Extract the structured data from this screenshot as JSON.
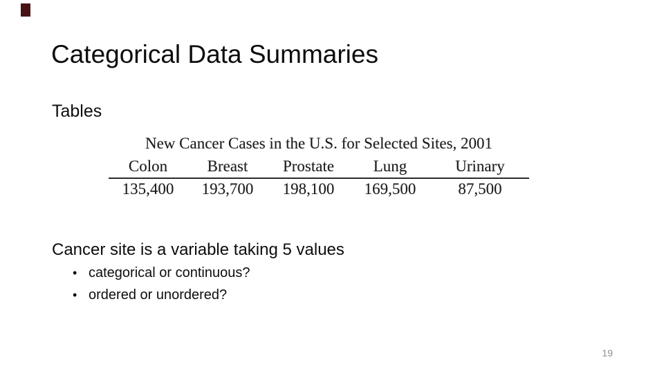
{
  "slide": {
    "title": "Categorical Data Summaries",
    "section_label": "Tables",
    "statement": "Cancer site is a variable taking 5 values",
    "bullet_char": "•",
    "bullets": [
      "categorical or continuous?",
      "ordered or unordered?"
    ],
    "page_number": "19",
    "accent_color": "#471213"
  },
  "chart_data": {
    "type": "table",
    "title": "New Cancer Cases in the U.S. for Selected Sites, 2001",
    "columns": [
      "Colon",
      "Breast",
      "Prostate",
      "Lung",
      "Urinary"
    ],
    "values": [
      "135,400",
      "193,700",
      "198,100",
      "169,500",
      "87,500"
    ],
    "layout_hints": {
      "rule": "single horizontal rule between header row and value row",
      "alignment": "columns center-aligned"
    }
  }
}
